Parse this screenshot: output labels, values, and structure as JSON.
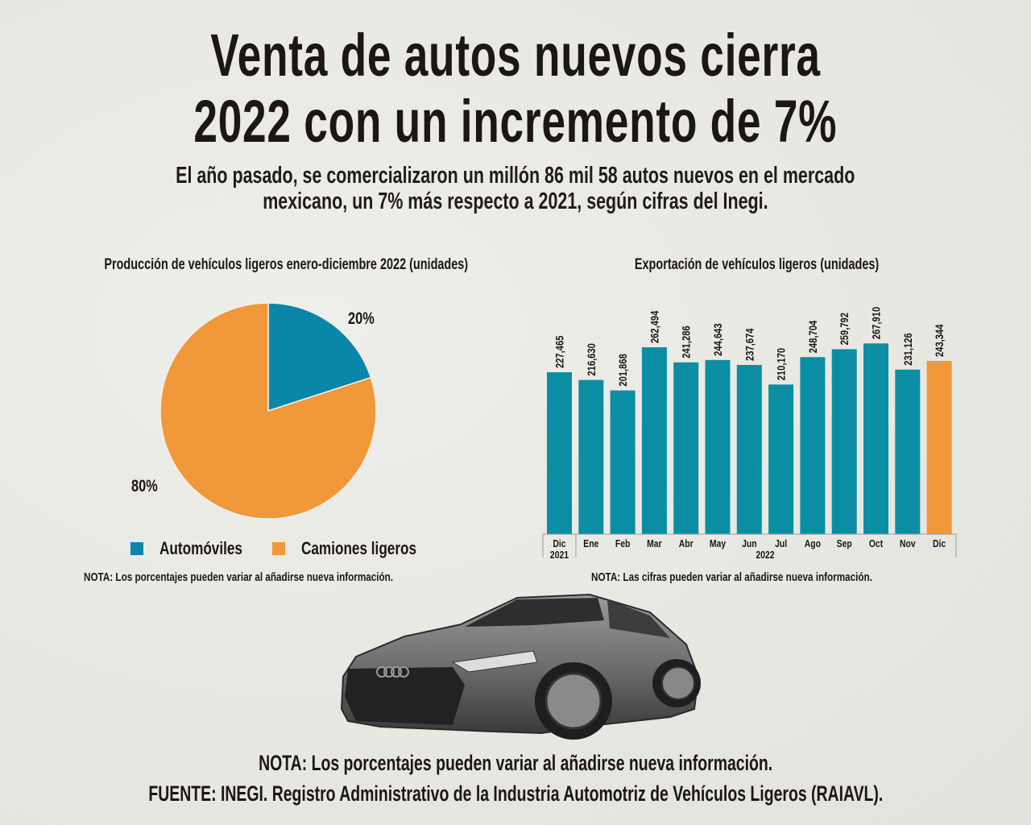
{
  "header": {
    "title_line1": "Venta de autos nuevos cierra",
    "title_line2": "2022 con un incremento de 7%",
    "subtitle_line1": "El año pasado, se comercializaron un millón 86 mil 58 autos nuevos en el mercado",
    "subtitle_line2": "mexicano, un 7% más respecto a 2021, según cifras del Inegi."
  },
  "colors": {
    "teal": "#0b8ea4",
    "pie_teal": "#0a87a8",
    "orange": "#f0983a",
    "text": "#1d1714"
  },
  "chart_data": [
    {
      "type": "pie",
      "title": "Producción de vehículos ligeros enero-diciembre 2022 (unidades)",
      "slices": [
        {
          "label": "Automóviles",
          "value": 20,
          "display": "20%"
        },
        {
          "label": "Camiones ligeros",
          "value": 80,
          "display": "80%"
        }
      ],
      "legend": [
        "Automóviles",
        "Camiones ligeros"
      ],
      "legend_position": "bottom",
      "note": "NOTA: Los porcentajes pueden variar al añadirse nueva información."
    },
    {
      "type": "bar",
      "title": "Exportación de vehículos ligeros (unidades)",
      "categories": [
        "Dic",
        "Ene",
        "Feb",
        "Mar",
        "Abr",
        "May",
        "Jun",
        "Jul",
        "Ago",
        "Sep",
        "Oct",
        "Nov",
        "Dic"
      ],
      "category_groups": [
        {
          "label": "2021",
          "from": 0,
          "to": 0
        },
        {
          "label": "2022",
          "from": 1,
          "to": 12
        }
      ],
      "values": [
        227465,
        216630,
        201868,
        262494,
        241286,
        244643,
        237674,
        210170,
        248704,
        259792,
        267910,
        231126,
        243344
      ],
      "value_labels": [
        "227,465",
        "216,630",
        "201,868",
        "262,494",
        "241,286",
        "244,643",
        "237,674",
        "210,170",
        "248,704",
        "259,792",
        "267,910",
        "231,126",
        "243,344"
      ],
      "highlight_index": 12,
      "ylim": [
        0,
        300000
      ],
      "grid": false,
      "xlabel": "",
      "ylabel": "",
      "note": "NOTA: Las cifras pueden variar al añadirse nueva información."
    }
  ],
  "footer": {
    "note": "NOTA: Los porcentajes pueden variar al añadirse nueva información.",
    "source": "FUENTE: INEGI. Registro Administrativo de la Industria Automotriz de Vehículos Ligeros (RAIAVL)."
  },
  "image": {
    "alt": "car-photo"
  }
}
